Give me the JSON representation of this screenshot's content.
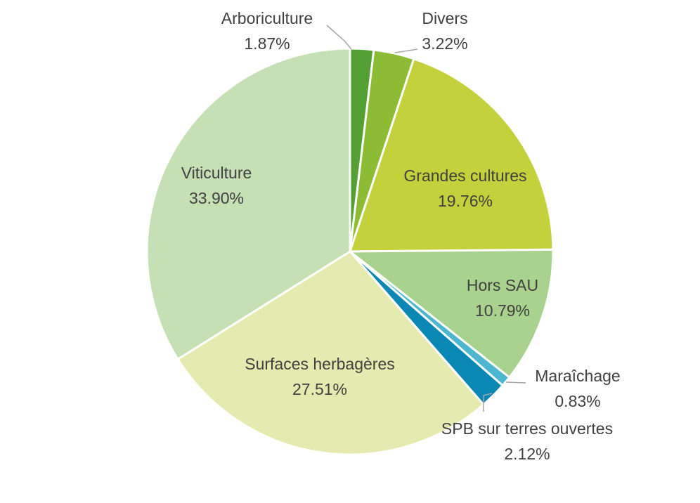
{
  "chart_data": {
    "type": "pie",
    "slices": [
      {
        "name": "Arboriculture",
        "value": 1.87,
        "label": "1.87%",
        "color": "#54a035"
      },
      {
        "name": "Divers",
        "value": 3.22,
        "label": "3.22%",
        "color": "#8cbc34"
      },
      {
        "name": "Grandes cultures",
        "value": 19.76,
        "label": "19.76%",
        "color": "#c4d13c"
      },
      {
        "name": "Hors SAU",
        "value": 10.79,
        "label": "10.79%",
        "color": "#a8d28e"
      },
      {
        "name": "Maraîchage",
        "value": 0.83,
        "label": "0.83%",
        "color": "#4cb7cf"
      },
      {
        "name": "SPB sur terres ouvertes",
        "value": 2.12,
        "label": "2.12%",
        "color": "#0b87b3"
      },
      {
        "name": "Surfaces herbagères",
        "value": 27.51,
        "label": "27.51%",
        "color": "#e5ebb0"
      },
      {
        "name": "Viticulture",
        "value": 33.9,
        "label": "33.90%",
        "color": "#c5e0b4"
      }
    ],
    "text_color": "#404040",
    "leader_line_color": "#a6a6a6"
  }
}
